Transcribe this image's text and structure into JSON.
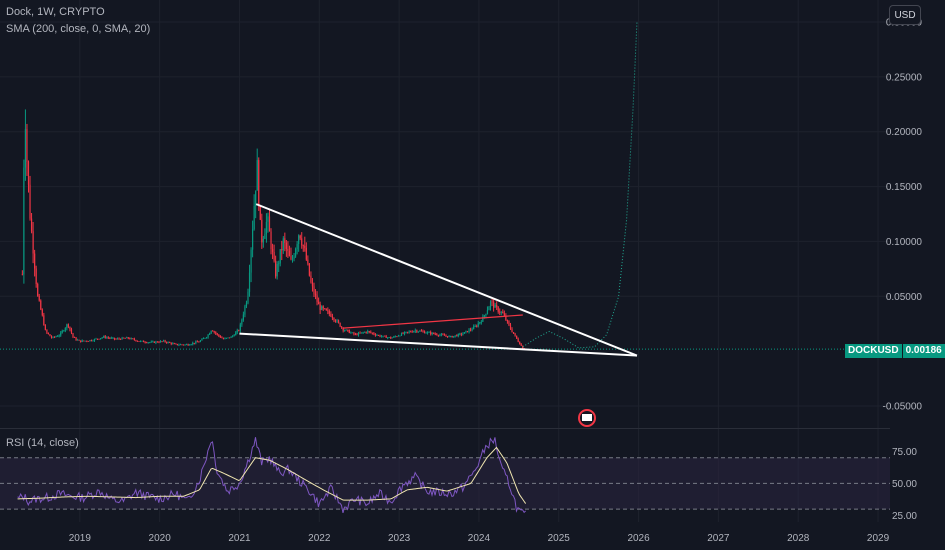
{
  "header": {
    "symbol_line": "Dock, 1W, CRYPTO",
    "indicator_line": "SMA (200, close, 0, SMA, 20)",
    "currency_button": "USD"
  },
  "rsi_panel": {
    "label": "RSI (14, close)"
  },
  "last_price": {
    "symbol": "DOCKUSD",
    "value": "0.00186"
  },
  "colors": {
    "background": "#131722",
    "up": "#089981",
    "down": "#f23645",
    "trendline": "#ffffff",
    "resistance": "#f23645",
    "projection": "#22ab94",
    "rsi_line": "#7e57c2",
    "rsi_ma": "#f0e6b0",
    "rsi_band": "#2a2440"
  },
  "chart_data": [
    {
      "type": "candlestick",
      "y_axis_ticks": [
        "0.30000",
        "0.25000",
        "0.20000",
        "0.15000",
        "0.10000",
        "0.05000",
        "-0.05000"
      ],
      "ylim": [
        -0.07,
        0.32
      ],
      "x_axis_ticks": [
        "2019",
        "2020",
        "2021",
        "2022",
        "2023",
        "2024",
        "2025",
        "2026",
        "2027",
        "2028",
        "2029"
      ],
      "xlim": [
        2018.0,
        2029.15
      ],
      "price_path": [
        [
          2018.28,
          0.07
        ],
        [
          2018.31,
          0.23
        ],
        [
          2018.34,
          0.17
        ],
        [
          2018.38,
          0.12
        ],
        [
          2018.42,
          0.09
        ],
        [
          2018.47,
          0.05
        ],
        [
          2018.52,
          0.035
        ],
        [
          2018.57,
          0.018
        ],
        [
          2018.65,
          0.012
        ],
        [
          2018.75,
          0.015
        ],
        [
          2018.85,
          0.025
        ],
        [
          2018.92,
          0.012
        ],
        [
          2019.0,
          0.009
        ],
        [
          2019.15,
          0.01
        ],
        [
          2019.3,
          0.013
        ],
        [
          2019.45,
          0.011
        ],
        [
          2019.6,
          0.012
        ],
        [
          2019.75,
          0.009
        ],
        [
          2019.9,
          0.008
        ],
        [
          2020.05,
          0.009
        ],
        [
          2020.2,
          0.006
        ],
        [
          2020.35,
          0.006
        ],
        [
          2020.5,
          0.009
        ],
        [
          2020.6,
          0.014
        ],
        [
          2020.65,
          0.02
        ],
        [
          2020.72,
          0.015
        ],
        [
          2020.8,
          0.011
        ],
        [
          2020.9,
          0.013
        ],
        [
          2021.0,
          0.02
        ],
        [
          2021.1,
          0.05
        ],
        [
          2021.17,
          0.12
        ],
        [
          2021.22,
          0.17
        ],
        [
          2021.27,
          0.1
        ],
        [
          2021.35,
          0.12
        ],
        [
          2021.45,
          0.07
        ],
        [
          2021.55,
          0.1
        ],
        [
          2021.65,
          0.08
        ],
        [
          2021.75,
          0.11
        ],
        [
          2021.82,
          0.09
        ],
        [
          2021.9,
          0.06
        ],
        [
          2022.0,
          0.04
        ],
        [
          2022.15,
          0.033
        ],
        [
          2022.3,
          0.02
        ],
        [
          2022.45,
          0.015
        ],
        [
          2022.6,
          0.018
        ],
        [
          2022.75,
          0.014
        ],
        [
          2022.9,
          0.012
        ],
        [
          2023.05,
          0.016
        ],
        [
          2023.2,
          0.019
        ],
        [
          2023.35,
          0.017
        ],
        [
          2023.5,
          0.015
        ],
        [
          2023.65,
          0.013
        ],
        [
          2023.8,
          0.016
        ],
        [
          2023.95,
          0.022
        ],
        [
          2024.05,
          0.03
        ],
        [
          2024.15,
          0.045
        ],
        [
          2024.2,
          0.04
        ],
        [
          2024.3,
          0.034
        ],
        [
          2024.4,
          0.02
        ],
        [
          2024.5,
          0.008
        ],
        [
          2024.55,
          0.003
        ],
        [
          2024.58,
          0.00186
        ]
      ],
      "trendlines": {
        "upper": [
          [
            2021.21,
            0.134
          ],
          [
            2025.98,
            -0.004
          ]
        ],
        "lower": [
          [
            2021.0,
            0.016
          ],
          [
            2025.98,
            -0.004
          ]
        ],
        "resistance": [
          [
            2022.3,
            0.021
          ],
          [
            2024.55,
            0.033
          ]
        ],
        "projection": [
          [
            2024.55,
            0.004
          ],
          [
            2024.72,
            0.012
          ],
          [
            2024.88,
            0.018
          ],
          [
            2025.05,
            0.012
          ],
          [
            2025.25,
            0.003
          ],
          [
            2025.45,
            0.004
          ],
          [
            2025.6,
            0.015
          ],
          [
            2025.75,
            0.05
          ],
          [
            2025.85,
            0.12
          ],
          [
            2025.93,
            0.22
          ],
          [
            2025.98,
            0.3
          ]
        ],
        "last_price": 0.00186
      }
    },
    {
      "type": "line",
      "title": "RSI (14, close)",
      "y_axis_ticks": [
        "75.00",
        "50.00",
        "25.00"
      ],
      "ylim": [
        20,
        90
      ],
      "bands": {
        "upper": 70,
        "middle": 50,
        "lower": 30
      },
      "series": [
        {
          "values": [
            [
              2018.22,
              38
            ],
            [
              2018.3,
              40
            ],
            [
              2018.36,
              36
            ],
            [
              2018.45,
              38
            ],
            [
              2018.6,
              39
            ],
            [
              2018.75,
              42
            ],
            [
              2018.9,
              40
            ],
            [
              2019.05,
              39
            ],
            [
              2019.25,
              44
            ],
            [
              2019.4,
              37
            ],
            [
              2019.55,
              36
            ],
            [
              2019.7,
              43
            ],
            [
              2019.85,
              40
            ],
            [
              2020.0,
              38
            ],
            [
              2020.2,
              42
            ],
            [
              2020.35,
              36
            ],
            [
              2020.5,
              53
            ],
            [
              2020.6,
              74
            ],
            [
              2020.65,
              86
            ],
            [
              2020.72,
              60
            ],
            [
              2020.85,
              44
            ],
            [
              2021.0,
              50
            ],
            [
              2021.1,
              66
            ],
            [
              2021.2,
              84
            ],
            [
              2021.28,
              66
            ],
            [
              2021.38,
              70
            ],
            [
              2021.5,
              58
            ],
            [
              2021.62,
              61
            ],
            [
              2021.75,
              52
            ],
            [
              2021.88,
              44
            ],
            [
              2022.0,
              34
            ],
            [
              2022.15,
              46
            ],
            [
              2022.3,
              30
            ],
            [
              2022.45,
              38
            ],
            [
              2022.6,
              34
            ],
            [
              2022.75,
              42
            ],
            [
              2022.9,
              36
            ],
            [
              2023.05,
              49
            ],
            [
              2023.2,
              55
            ],
            [
              2023.35,
              44
            ],
            [
              2023.5,
              43
            ],
            [
              2023.65,
              42
            ],
            [
              2023.8,
              47
            ],
            [
              2023.95,
              60
            ],
            [
              2024.1,
              80
            ],
            [
              2024.2,
              84
            ],
            [
              2024.28,
              62
            ],
            [
              2024.38,
              50
            ],
            [
              2024.48,
              30
            ],
            [
              2024.55,
              26
            ],
            [
              2024.6,
              25
            ]
          ]
        },
        {
          "values": [
            [
              2018.22,
              38
            ],
            [
              2018.5,
              38.5
            ],
            [
              2018.8,
              39.5
            ],
            [
              2019.1,
              40
            ],
            [
              2019.4,
              39.5
            ],
            [
              2019.7,
              39
            ],
            [
              2020.0,
              40
            ],
            [
              2020.3,
              40
            ],
            [
              2020.5,
              45
            ],
            [
              2020.65,
              62
            ],
            [
              2020.8,
              58
            ],
            [
              2021.0,
              52
            ],
            [
              2021.2,
              70
            ],
            [
              2021.38,
              68
            ],
            [
              2021.6,
              61
            ],
            [
              2021.85,
              52
            ],
            [
              2022.05,
              45
            ],
            [
              2022.3,
              37
            ],
            [
              2022.6,
              37
            ],
            [
              2022.9,
              38
            ],
            [
              2023.1,
              45
            ],
            [
              2023.35,
              47
            ],
            [
              2023.6,
              44
            ],
            [
              2023.9,
              50
            ],
            [
              2024.1,
              70
            ],
            [
              2024.22,
              78
            ],
            [
              2024.35,
              66
            ],
            [
              2024.5,
              42
            ],
            [
              2024.6,
              33
            ]
          ]
        }
      ]
    }
  ]
}
